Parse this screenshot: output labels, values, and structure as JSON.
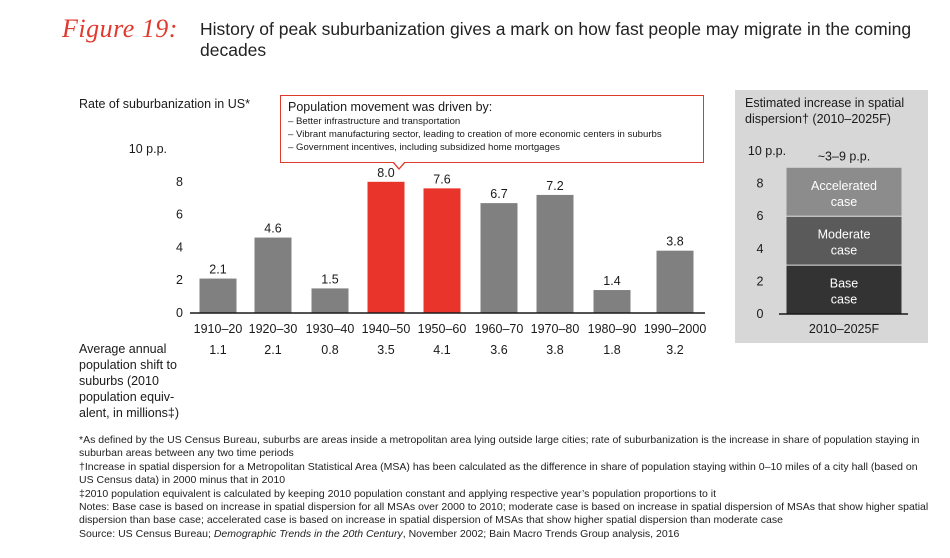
{
  "figure": {
    "label": "Figure 19:",
    "title": "History of peak suburbanization gives a mark on how fast people may migrate in the coming decades"
  },
  "callout": {
    "heading": "Population movement was driven by:",
    "items": [
      "– Better infrastructure and transportation",
      "– Vibrant manufacturing sector, leading to creation of more economic centers in suburbs",
      "– Government incentives, including subsidized home mortgages"
    ]
  },
  "row_label": "Average annual population shift to suburbs (2010 population equiv-alent, in millions‡)",
  "colors": {
    "highlight": "#e8342a",
    "base": "#808080",
    "panel_bg": "#d7d7d7",
    "accelerated": "#8c8c8c",
    "moderate": "#5a5a5a",
    "base_case": "#333333"
  },
  "chart_data": [
    {
      "type": "bar",
      "title": "Rate of suburbanization in US*",
      "ylabel": "Rate of suburbanization in US*",
      "ylim": [
        0,
        10
      ],
      "yticks": [
        0,
        2,
        4,
        6,
        8
      ],
      "ytick_top_label": "10 p.p.",
      "categories": [
        "1910–20",
        "1920–30",
        "1930–40",
        "1940–50",
        "1950–60",
        "1960–70",
        "1970–80",
        "1980–90",
        "1990–2000"
      ],
      "values": [
        2.1,
        4.6,
        1.5,
        8.0,
        7.6,
        6.7,
        7.2,
        1.4,
        3.8
      ],
      "value_labels": [
        "2.1",
        "4.6",
        "1.5",
        "8.0",
        "7.6",
        "6.7",
        "7.2",
        "1.4",
        "3.8"
      ],
      "highlighted": [
        false,
        false,
        false,
        true,
        true,
        false,
        false,
        false,
        false
      ],
      "population_shift": [
        "1.1",
        "2.1",
        "0.8",
        "3.5",
        "4.1",
        "3.6",
        "3.8",
        "1.8",
        "3.2"
      ]
    },
    {
      "type": "bar",
      "stacked": true,
      "title": "Estimated increase in spatial dispersion† (2010–2025F)",
      "ylim": [
        0,
        10
      ],
      "yticks": [
        0,
        2,
        4,
        6,
        8
      ],
      "ytick_top_label": "10 p.p.",
      "categories": [
        "2010–2025F"
      ],
      "total_label": "~3–9 p.p.",
      "series": [
        {
          "name": "Base case",
          "values": [
            3
          ]
        },
        {
          "name": "Moderate case",
          "values": [
            3
          ]
        },
        {
          "name": "Accelerated case",
          "values": [
            3
          ]
        }
      ]
    }
  ],
  "footnotes": [
    "*As defined by the US Census Bureau, suburbs are areas inside a metropolitan area lying outside large cities; rate of suburbanization is the increase in share of population staying in suburban areas between any two time periods",
    "†Increase in spatial dispersion for a Metropolitan Statistical Area (MSA) has been calculated as the difference in share of population staying within 0–10 miles of a city hall (based on US Census data) in 2000 minus that in 2010",
    "‡2010 population equivalent is calculated by keeping 2010 population constant and applying respective year’s population proportions to it",
    "Notes: Base case is based on increase in spatial dispersion for all MSAs over 2000 to 2010; moderate case is based on increase in spatial dispersion of MSAs that show higher spatial dispersion than base case; accelerated case is based on increase in spatial dispersion of MSAs that show higher spatial dispersion than moderate case"
  ],
  "source": {
    "prefix": "Source: US Census Bureau; ",
    "italic": "Demographic Trends in the 20th Century",
    "suffix": ", November 2002; Bain Macro Trends Group analysis, 2016"
  }
}
